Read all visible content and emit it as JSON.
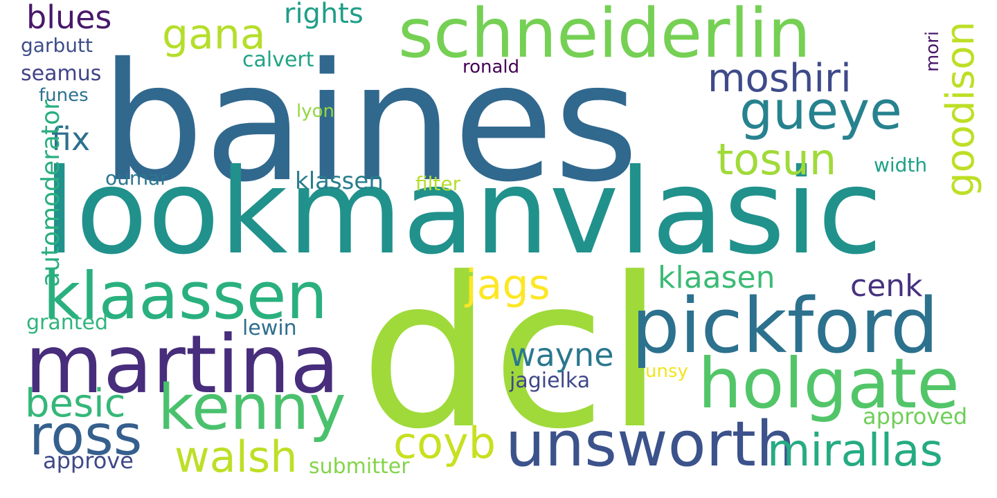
{
  "words": [
    {
      "text": "baines",
      "color": "#31688e",
      "rotated": false
    },
    {
      "text": "lookmanvlasic",
      "color": "#21918c",
      "rotated": false
    },
    {
      "text": "dcl",
      "color": "#9fda3a",
      "rotated": false
    },
    {
      "text": "schneiderlin",
      "color": "#75d054",
      "rotated": false
    },
    {
      "text": "pickford",
      "color": "#2c718e",
      "rotated": false
    },
    {
      "text": "martina",
      "color": "#472d7b",
      "rotated": false
    },
    {
      "text": "klaassen",
      "color": "#2ab07f",
      "rotated": false
    },
    {
      "text": "holgate",
      "color": "#52c569",
      "rotated": false
    },
    {
      "text": "kenny",
      "color": "#4ac16d",
      "rotated": false
    },
    {
      "text": "unsworth",
      "color": "#3b528b",
      "rotated": false
    },
    {
      "text": "ross",
      "color": "#355f8d",
      "rotated": false
    },
    {
      "text": "gueye",
      "color": "#26828e",
      "rotated": false
    },
    {
      "text": "mirallas",
      "color": "#25ab82",
      "rotated": false
    },
    {
      "text": "jags",
      "color": "#fde725",
      "rotated": false
    },
    {
      "text": "tosun",
      "color": "#a0da39",
      "rotated": false
    },
    {
      "text": "moshiri",
      "color": "#3e4a89",
      "rotated": false
    },
    {
      "text": "gana",
      "color": "#b5de2b",
      "rotated": false
    },
    {
      "text": "walsh",
      "color": "#bddf26",
      "rotated": false
    },
    {
      "text": "coyb",
      "color": "#c8e020",
      "rotated": false
    },
    {
      "text": "besic",
      "color": "#35b779",
      "rotated": false
    },
    {
      "text": "goodison",
      "color": "#bddf26",
      "rotated": true
    },
    {
      "text": "wayne",
      "color": "#2a788e",
      "rotated": false
    },
    {
      "text": "cenk",
      "color": "#46327e",
      "rotated": false
    },
    {
      "text": "klaasen",
      "color": "#3bbb75",
      "rotated": false
    },
    {
      "text": "blues",
      "color": "#48186a",
      "rotated": false
    },
    {
      "text": "rights",
      "color": "#1f9e89",
      "rotated": false
    },
    {
      "text": "fix",
      "color": "#2d708e",
      "rotated": false
    },
    {
      "text": "automoderator",
      "color": "#29af7f",
      "rotated": true
    },
    {
      "text": "klassen",
      "color": "#287d8e",
      "rotated": false
    },
    {
      "text": "approve",
      "color": "#3e4989",
      "rotated": false
    },
    {
      "text": "approved",
      "color": "#6ece58",
      "rotated": false
    },
    {
      "text": "submitter",
      "color": "#84d44b",
      "rotated": false
    },
    {
      "text": "granted",
      "color": "#2fb47c",
      "rotated": false
    },
    {
      "text": "jagielka",
      "color": "#3f4788",
      "rotated": false
    },
    {
      "text": "filter",
      "color": "#b5de2b",
      "rotated": false
    },
    {
      "text": "width",
      "color": "#1fa088",
      "rotated": false
    },
    {
      "text": "seamus",
      "color": "#404387",
      "rotated": false
    },
    {
      "text": "calvert",
      "color": "#20a486",
      "rotated": false
    },
    {
      "text": "garbutt",
      "color": "#3d4d8a",
      "rotated": false
    },
    {
      "text": "oumar",
      "color": "#2a778e",
      "rotated": false
    },
    {
      "text": "lewin",
      "color": "#2e6e8e",
      "rotated": false
    },
    {
      "text": "funes",
      "color": "#2c728e",
      "rotated": false
    },
    {
      "text": "unsy",
      "color": "#f1e51d",
      "rotated": false
    },
    {
      "text": "lyon",
      "color": "#93d741",
      "rotated": false
    },
    {
      "text": "ronald",
      "color": "#440154",
      "rotated": false
    },
    {
      "text": "mori",
      "color": "#481769",
      "rotated": true
    }
  ]
}
